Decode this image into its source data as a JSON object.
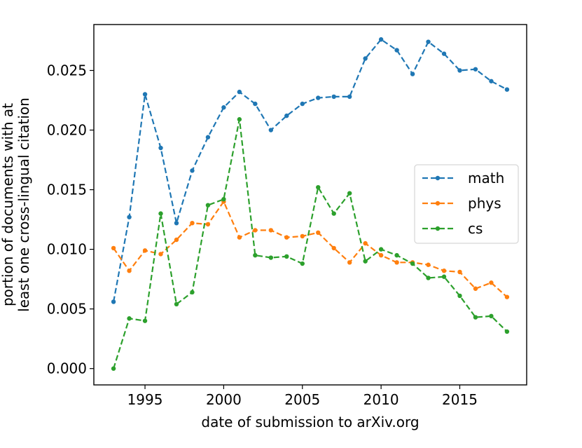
{
  "chart_data": {
    "type": "line",
    "title": "",
    "xlabel": "date of submission to arXiv.org",
    "ylabel_lines": [
      "portion of documents with at",
      "least one cross-lingual citation"
    ],
    "xlim": [
      1991.75,
      2019.25
    ],
    "ylim": [
      -0.00137,
      0.02885
    ],
    "xticks": [
      1995,
      2000,
      2005,
      2010,
      2015
    ],
    "xtick_labels": [
      "1995",
      "2000",
      "2005",
      "2010",
      "2015"
    ],
    "yticks": [
      0.0,
      0.005,
      0.01,
      0.015,
      0.02,
      0.025
    ],
    "ytick_labels": [
      "0.000",
      "0.005",
      "0.010",
      "0.015",
      "0.020",
      "0.025"
    ],
    "grid": false,
    "legend_position": "center-right",
    "x": [
      1993,
      1994,
      1995,
      1996,
      1997,
      1998,
      1999,
      2000,
      2001,
      2002,
      2003,
      2004,
      2005,
      2006,
      2007,
      2008,
      2009,
      2010,
      2011,
      2012,
      2013,
      2014,
      2015,
      2016,
      2017,
      2018
    ],
    "series": [
      {
        "name": "math",
        "color": "#1f77b4",
        "values": [
          0.0056,
          0.0127,
          0.023,
          0.0185,
          0.0122,
          0.0166,
          0.0194,
          0.0219,
          0.0232,
          0.0222,
          0.02,
          0.0212,
          0.0222,
          0.0227,
          0.0228,
          0.0228,
          0.026,
          0.0276,
          0.0267,
          0.0247,
          0.0274,
          0.0264,
          0.025,
          0.0251,
          0.0241,
          0.0234
        ]
      },
      {
        "name": "phys",
        "color": "#ff7f0e",
        "values": [
          0.0101,
          0.0082,
          0.0099,
          0.0096,
          0.0108,
          0.0122,
          0.0121,
          0.014,
          0.011,
          0.0116,
          0.0116,
          0.011,
          0.0111,
          0.0114,
          0.0101,
          0.0089,
          0.0105,
          0.0095,
          0.0089,
          0.0089,
          0.0087,
          0.0082,
          0.0081,
          0.0067,
          0.0072,
          0.006
        ]
      },
      {
        "name": "cs",
        "color": "#2ca02c",
        "values": [
          0.0,
          0.0042,
          0.004,
          0.013,
          0.0054,
          0.0064,
          0.0137,
          0.0142,
          0.0209,
          0.0095,
          0.0093,
          0.0094,
          0.0088,
          0.0152,
          0.013,
          0.0147,
          0.009,
          0.01,
          0.0095,
          0.0088,
          0.0076,
          0.0077,
          0.0061,
          0.0043,
          0.0044,
          0.0031
        ]
      }
    ]
  }
}
